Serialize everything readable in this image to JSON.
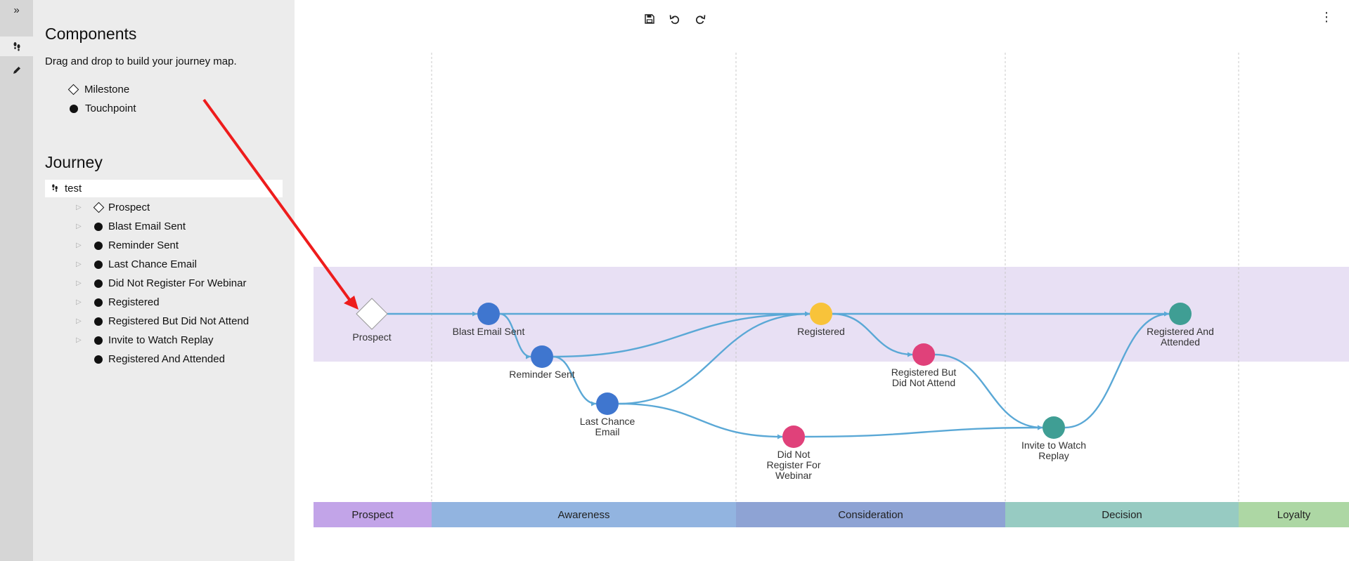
{
  "rail": {
    "expand_icon": "»",
    "journey_icon": "¹⁄",
    "edit_icon": "✎"
  },
  "components": {
    "title": "Components",
    "description": "Drag and drop to build your journey map.",
    "items": [
      {
        "label": "Milestone",
        "icon": "diamond"
      },
      {
        "label": "Touchpoint",
        "icon": "dot"
      }
    ]
  },
  "journey": {
    "title": "Journey",
    "root": "test",
    "items": [
      {
        "label": "Prospect",
        "icon": "diamond",
        "expandable": true
      },
      {
        "label": "Blast Email Sent",
        "icon": "dot",
        "expandable": true
      },
      {
        "label": "Reminder Sent",
        "icon": "dot",
        "expandable": true
      },
      {
        "label": "Last Chance Email",
        "icon": "dot",
        "expandable": true
      },
      {
        "label": "Did Not Register For Webinar",
        "icon": "dot",
        "expandable": true
      },
      {
        "label": "Registered",
        "icon": "dot",
        "expandable": true
      },
      {
        "label": "Registered But Did Not Attend",
        "icon": "dot",
        "expandable": true
      },
      {
        "label": "Invite to Watch Replay",
        "icon": "dot",
        "expandable": true
      },
      {
        "label": "Registered And Attended",
        "icon": "dot",
        "expandable": false
      }
    ]
  },
  "toolbar": {
    "save_icon": "save-icon",
    "undo_icon": "undo-icon",
    "redo_icon": "redo-icon",
    "more_icon": "⋮"
  },
  "map": {
    "stages": [
      {
        "label": "Prospect",
        "color": "#c2a4e8"
      },
      {
        "label": "Awareness",
        "color": "#92b4e0"
      },
      {
        "label": "Consideration",
        "color": "#8ea3d4"
      },
      {
        "label": "Decision",
        "color": "#97cbc2"
      },
      {
        "label": "Loyalty",
        "color": "#add7a4"
      }
    ],
    "band_color": "#e8e0f4",
    "edge_color": "#5aa8d6",
    "nodes": [
      {
        "id": "prospect",
        "label": [
          "Prospect"
        ],
        "type": "milestone",
        "color": "#ffffff"
      },
      {
        "id": "blast",
        "label": [
          "Blast Email Sent"
        ],
        "type": "touchpoint",
        "color": "#3f76cf"
      },
      {
        "id": "reminder",
        "label": [
          "Reminder Sent"
        ],
        "type": "touchpoint",
        "color": "#3f76cf"
      },
      {
        "id": "lastchance",
        "label": [
          "Last Chance",
          "Email"
        ],
        "type": "touchpoint",
        "color": "#3f76cf"
      },
      {
        "id": "notreg",
        "label": [
          "Did Not",
          "Register For",
          "Webinar"
        ],
        "type": "touchpoint",
        "color": "#e0417a"
      },
      {
        "id": "registered",
        "label": [
          "Registered"
        ],
        "type": "touchpoint",
        "color": "#f8c33a"
      },
      {
        "id": "regnoattend",
        "label": [
          "Registered But",
          "Did Not Attend"
        ],
        "type": "touchpoint",
        "color": "#e0417a"
      },
      {
        "id": "replay",
        "label": [
          "Invite to Watch",
          "Replay"
        ],
        "type": "touchpoint",
        "color": "#3f9e94"
      },
      {
        "id": "regattended",
        "label": [
          "Registered And",
          "Attended"
        ],
        "type": "touchpoint",
        "color": "#3f9e94"
      }
    ],
    "edges": [
      [
        "prospect",
        "blast"
      ],
      [
        "blast",
        "registered"
      ],
      [
        "blast",
        "reminder"
      ],
      [
        "reminder",
        "registered"
      ],
      [
        "reminder",
        "lastchance"
      ],
      [
        "lastchance",
        "registered"
      ],
      [
        "lastchance",
        "notreg"
      ],
      [
        "notreg",
        "replay"
      ],
      [
        "registered",
        "regattended"
      ],
      [
        "registered",
        "regnoattend"
      ],
      [
        "regnoattend",
        "replay"
      ],
      [
        "replay",
        "regattended"
      ]
    ]
  },
  "annotation": {
    "arrow_color": "#ee1c1c"
  }
}
